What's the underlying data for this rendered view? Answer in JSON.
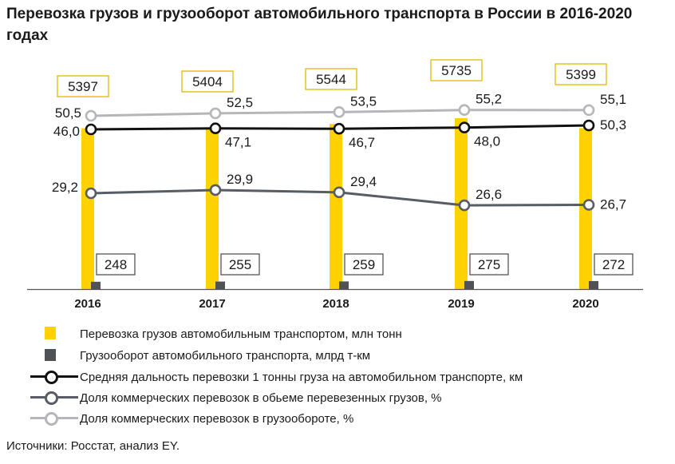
{
  "title": "Перевозка грузов и грузооборот автомобильного транспорта в России в 2016-2020 годах",
  "source": "Источники: Росстат, анализ EY.",
  "colors": {
    "tonnage": "#ffd200",
    "turnover": "#4f5358",
    "distance": "#111111",
    "share_tonnage": "#575d64",
    "share_turnover": "#b4b6b9",
    "axis": "#555555"
  },
  "legend": [
    {
      "label": "Перевозка грузов автомобильным транспортом, млн тонн",
      "kind": "bar",
      "color": "#ffd200"
    },
    {
      "label": "Грузооборот автомобильного транспорта, млрд т-км",
      "kind": "bar",
      "color": "#4f5358"
    },
    {
      "label": "Средняя дальность перевозки 1 тонны груза на автомобильном транспорте, км",
      "kind": "line",
      "color": "#111111"
    },
    {
      "label": "Доля коммерческих перевозок в обьеме перевезенных грузов, %",
      "kind": "line",
      "color": "#575d64"
    },
    {
      "label": "Доля коммерческих перевозок в грузообороте, %",
      "kind": "line",
      "color": "#b4b6b9"
    }
  ],
  "chart_data": {
    "type": "bar",
    "categories": [
      "2016",
      "2017",
      "2018",
      "2019",
      "2020"
    ],
    "series": [
      {
        "name": "Перевозка грузов автомобильным транспортом, млн тонн",
        "type": "bar",
        "values": [
          5397,
          5404,
          5544,
          5735,
          5399
        ],
        "labels": [
          "5397",
          "5404",
          "5544",
          "5735",
          "5399"
        ]
      },
      {
        "name": "Грузооборот автомобильного транспорта, млрд т-км",
        "type": "bar",
        "values": [
          248,
          255,
          259,
          275,
          272
        ],
        "labels": [
          "248",
          "255",
          "259",
          "275",
          "272"
        ]
      },
      {
        "name": "Средняя дальность перевозки 1 тонны груза на автомобильном транспорте, км",
        "type": "line",
        "values": [
          46.0,
          47.1,
          46.7,
          48.0,
          50.3
        ],
        "labels": [
          "46,0",
          "47,1",
          "46,7",
          "48,0",
          "50,3"
        ]
      },
      {
        "name": "Доля коммерческих перевозок в обьеме перевезенных грузов, %",
        "type": "line",
        "values": [
          29.2,
          29.9,
          29.4,
          26.6,
          26.7
        ],
        "labels": [
          "29,2",
          "29,9",
          "29,4",
          "26,6",
          "26,7"
        ]
      },
      {
        "name": "Доля коммерческих перевозок в грузообороте, %",
        "type": "line",
        "values": [
          50.5,
          52.5,
          53.5,
          55.2,
          55.1
        ],
        "labels": [
          "50,5",
          "52,5",
          "53,5",
          "55,2",
          "55,1"
        ]
      }
    ],
    "grid": false,
    "legend_position": "bottom"
  }
}
